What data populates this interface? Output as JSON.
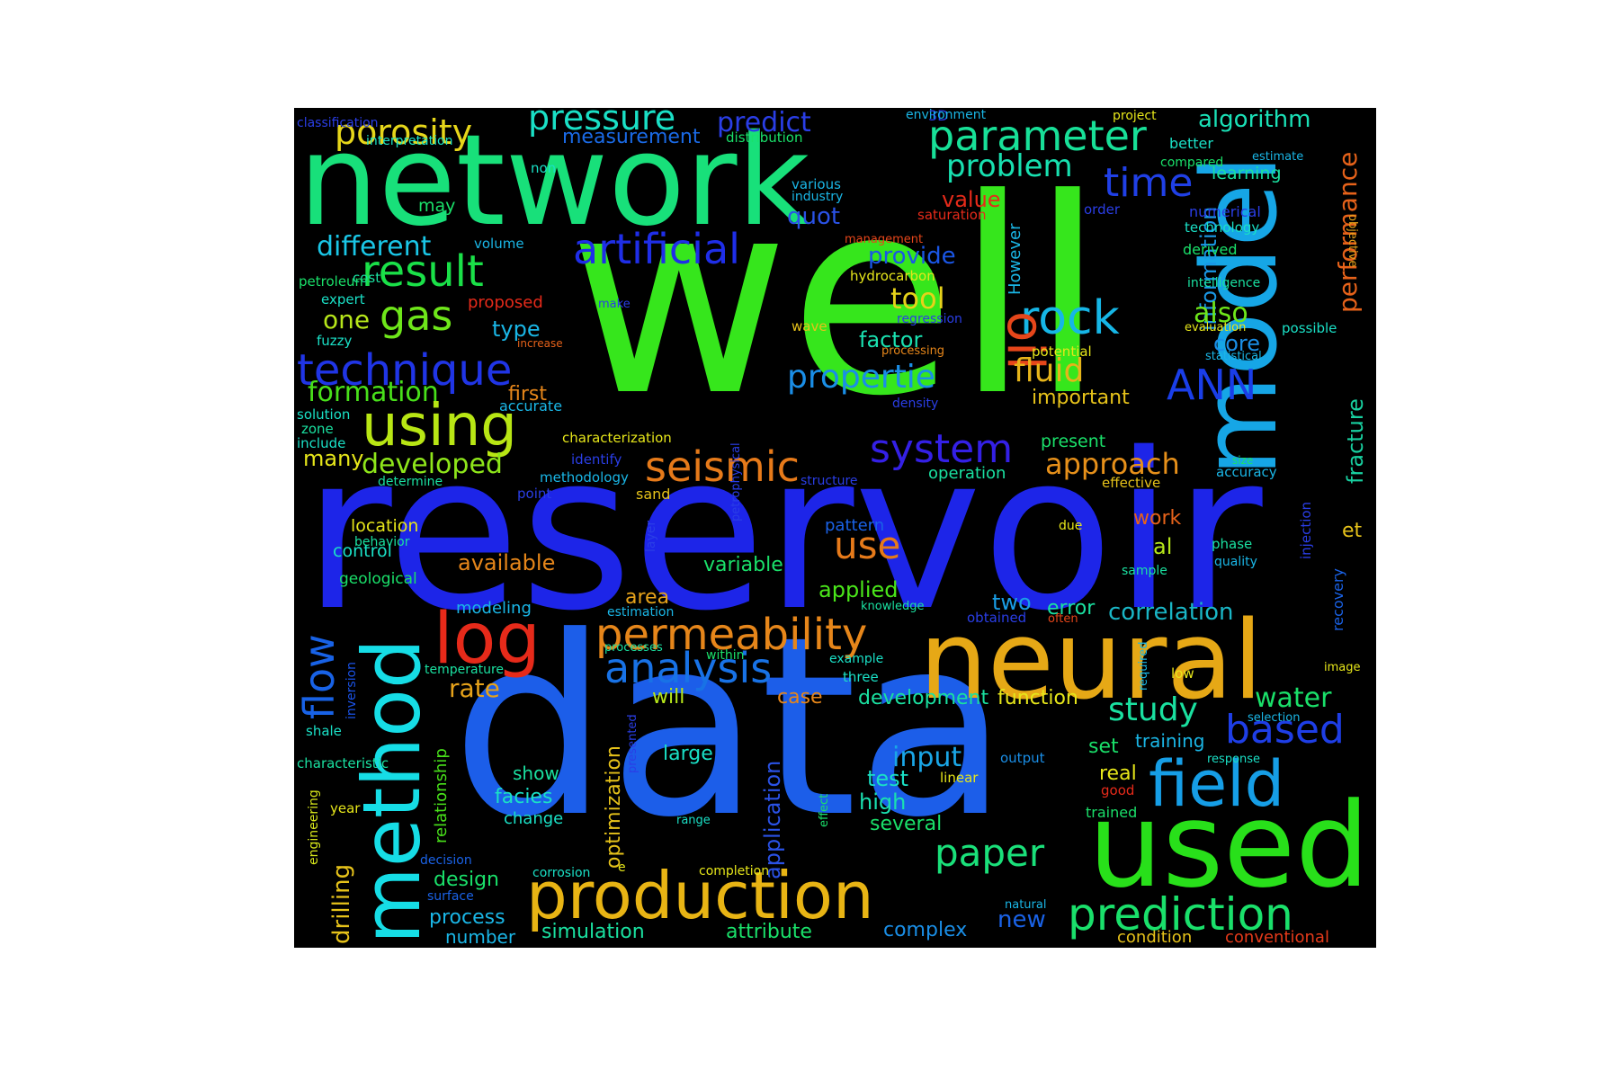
{
  "cloud": {
    "background": "#000000",
    "words": [
      {
        "text": "well",
        "color": "#36e61c"
      },
      {
        "text": "reservoir",
        "color": "#1d25e8"
      },
      {
        "text": "data",
        "color": "#1c5ee9"
      },
      {
        "text": "network",
        "color": "#18e07a"
      },
      {
        "text": "neural",
        "color": "#e6a816"
      },
      {
        "text": "model",
        "color": "#16a6e6"
      },
      {
        "text": "used",
        "color": "#28e01a"
      },
      {
        "text": "method",
        "color": "#16dde6"
      },
      {
        "text": "production",
        "color": "#e8b414"
      },
      {
        "text": "log",
        "color": "#e62a1a"
      },
      {
        "text": "field",
        "color": "#169ee6"
      },
      {
        "text": "prediction",
        "color": "#1ae06b"
      },
      {
        "text": "permeability",
        "color": "#e6861a"
      },
      {
        "text": "artificial",
        "color": "#1f2ee8"
      },
      {
        "text": "parameter",
        "color": "#18e098"
      },
      {
        "text": "technique",
        "color": "#2035e6"
      },
      {
        "text": "using",
        "color": "#b8e614"
      },
      {
        "text": "analysis",
        "color": "#1872e6"
      },
      {
        "text": "seismic",
        "color": "#e67a1a"
      },
      {
        "text": "rock",
        "color": "#16b6e6"
      },
      {
        "text": "result",
        "color": "#1ae048"
      },
      {
        "text": "porosity",
        "color": "#e6d61a"
      },
      {
        "text": "pressure",
        "color": "#1ae0c6"
      },
      {
        "text": "system",
        "color": "#3420e6"
      },
      {
        "text": "oil",
        "color": "#e6461a"
      },
      {
        "text": "flow",
        "color": "#1862e6"
      },
      {
        "text": "time",
        "color": "#2040e6"
      },
      {
        "text": "gas",
        "color": "#6ee61a"
      },
      {
        "text": "ANN",
        "color": "#1a3ee8"
      },
      {
        "text": "based",
        "color": "#1e3ee6"
      },
      {
        "text": "paper",
        "color": "#1ae07a"
      },
      {
        "text": "study",
        "color": "#1ae0a0"
      },
      {
        "text": "use",
        "color": "#e67a1a"
      },
      {
        "text": "problem",
        "color": "#18e0b0"
      },
      {
        "text": "fluid",
        "color": "#e6b41a"
      },
      {
        "text": "propertie",
        "color": "#1a8ee6"
      },
      {
        "text": "approach",
        "color": "#e6901a"
      },
      {
        "text": "performance",
        "color": "#e6621a"
      },
      {
        "text": "fracture",
        "color": "#18d0a0"
      },
      {
        "text": "information",
        "color": "#1a98e6"
      },
      {
        "text": "developed",
        "color": "#8ee61a"
      },
      {
        "text": "formation",
        "color": "#48e01a"
      },
      {
        "text": "drilling",
        "color": "#e6c21a"
      },
      {
        "text": "different",
        "color": "#1ac6e6"
      },
      {
        "text": "input",
        "color": "#1aa6e6"
      },
      {
        "text": "water",
        "color": "#1ae06a"
      },
      {
        "text": "predict",
        "color": "#2a3ee6"
      },
      {
        "text": "tool",
        "color": "#e6d21a"
      },
      {
        "text": "also",
        "color": "#6ee61a"
      },
      {
        "text": "correlation",
        "color": "#1ab6c6"
      },
      {
        "text": "rate",
        "color": "#e6a21a"
      },
      {
        "text": "one",
        "color": "#b6e61a"
      },
      {
        "text": "algorithm",
        "color": "#1ae0b6"
      },
      {
        "text": "measurement",
        "color": "#1a6ae6"
      },
      {
        "text": "quot",
        "color": "#2a52e6"
      },
      {
        "text": "provide",
        "color": "#1a56e6"
      },
      {
        "text": "value",
        "color": "#e62a1a"
      },
      {
        "text": "core",
        "color": "#1a8ee6"
      },
      {
        "text": "factor",
        "color": "#1ae0b0"
      },
      {
        "text": "important",
        "color": "#e6c21a"
      },
      {
        "text": "type",
        "color": "#1ab6e6"
      },
      {
        "text": "first",
        "color": "#e6861a"
      },
      {
        "text": "many",
        "color": "#e6e61a"
      },
      {
        "text": "available",
        "color": "#e6861a"
      },
      {
        "text": "variable",
        "color": "#1ae06a"
      },
      {
        "text": "applied",
        "color": "#4ae61a"
      },
      {
        "text": "area",
        "color": "#e6a21a"
      },
      {
        "text": "two",
        "color": "#1a9ee6"
      },
      {
        "text": "error",
        "color": "#1ae0a0"
      },
      {
        "text": "al",
        "color": "#b6e61a"
      },
      {
        "text": "et",
        "color": "#e6c21a"
      },
      {
        "text": "work",
        "color": "#e6621a"
      },
      {
        "text": "training",
        "color": "#1ab6e6"
      },
      {
        "text": "set",
        "color": "#1ae06a"
      },
      {
        "text": "real",
        "color": "#e6e61a"
      },
      {
        "text": "test",
        "color": "#1ae0c6"
      },
      {
        "text": "high",
        "color": "#1ae0b0"
      },
      {
        "text": "several",
        "color": "#1ae06a"
      },
      {
        "text": "will",
        "color": "#b6e61a"
      },
      {
        "text": "case",
        "color": "#e6861a"
      },
      {
        "text": "development",
        "color": "#1ae0a0"
      },
      {
        "text": "function",
        "color": "#e6e61a"
      },
      {
        "text": "show",
        "color": "#1ae0a0"
      },
      {
        "text": "facies",
        "color": "#1ae0c6"
      },
      {
        "text": "change",
        "color": "#1ae0c6"
      },
      {
        "text": "large",
        "color": "#1ae0c6"
      },
      {
        "text": "optimization",
        "color": "#e6c21a"
      },
      {
        "text": "application",
        "color": "#2a52e6"
      },
      {
        "text": "design",
        "color": "#1ae06a"
      },
      {
        "text": "process",
        "color": "#1ab6e6"
      },
      {
        "text": "number",
        "color": "#1ab6e6"
      },
      {
        "text": "simulation",
        "color": "#1ae0a0"
      },
      {
        "text": "attribute",
        "color": "#1ae06a"
      },
      {
        "text": "complex",
        "color": "#1a8ee6"
      },
      {
        "text": "new",
        "color": "#1a62e6"
      },
      {
        "text": "condition",
        "color": "#e6c21a"
      },
      {
        "text": "conventional",
        "color": "#e63a1a"
      },
      {
        "text": "modeling",
        "color": "#1ab6e6"
      },
      {
        "text": "relationship",
        "color": "#48e01a"
      },
      {
        "text": "characteristic",
        "color": "#1ae0a0"
      },
      {
        "text": "engineering",
        "color": "#d6e61a"
      },
      {
        "text": "year",
        "color": "#e6e61a"
      },
      {
        "text": "shale",
        "color": "#1ae0c6"
      },
      {
        "text": "inversion",
        "color": "#1a52e6"
      },
      {
        "text": "temperature",
        "color": "#1ae0a0"
      },
      {
        "text": "geological",
        "color": "#1ae06a"
      },
      {
        "text": "control",
        "color": "#1ae0c6"
      },
      {
        "text": "location",
        "color": "#e6e61a"
      },
      {
        "text": "behavior",
        "color": "#1ae0a0"
      },
      {
        "text": "determine",
        "color": "#1ae0a0"
      },
      {
        "text": "include",
        "color": "#1ae0c6"
      },
      {
        "text": "zone",
        "color": "#1ae0a0"
      },
      {
        "text": "solution",
        "color": "#1ae0c6"
      },
      {
        "text": "fuzzy",
        "color": "#1ae0c6"
      },
      {
        "text": "expert",
        "color": "#1ae0c6"
      },
      {
        "text": "cost",
        "color": "#1ae0a0"
      },
      {
        "text": "petroleum",
        "color": "#1ae06a"
      },
      {
        "text": "volume",
        "color": "#1ab6e6"
      },
      {
        "text": "may",
        "color": "#1ae06a"
      },
      {
        "text": "non",
        "color": "#1ae0c6"
      },
      {
        "text": "classification",
        "color": "#2a3ee6"
      },
      {
        "text": "interpretation",
        "color": "#1ae0c6"
      },
      {
        "text": "distribution",
        "color": "#1ae06a"
      },
      {
        "text": "3D",
        "color": "#2a3ee6"
      },
      {
        "text": "environment",
        "color": "#1ab6e6"
      },
      {
        "text": "project",
        "color": "#e6e61a"
      },
      {
        "text": "better",
        "color": "#1ae0c6"
      },
      {
        "text": "compared",
        "color": "#1ae06a"
      },
      {
        "text": "estimate",
        "color": "#1ab6e6"
      },
      {
        "text": "learning",
        "color": "#1ae0a0"
      },
      {
        "text": "numerical",
        "color": "#2a3ee6"
      },
      {
        "text": "technology",
        "color": "#1ae0c6"
      },
      {
        "text": "derived",
        "color": "#1ae06a"
      },
      {
        "text": "objective",
        "color": "#e6a21a"
      },
      {
        "text": "intelligence",
        "color": "#1ae0a0"
      },
      {
        "text": "evaluation",
        "color": "#e6e61a"
      },
      {
        "text": "possible",
        "color": "#1ae0c6"
      },
      {
        "text": "statistical",
        "color": "#1ab6e6"
      },
      {
        "text": "potential",
        "color": "#e6e61a"
      },
      {
        "text": "order",
        "color": "#2a3ee6"
      },
      {
        "text": "various",
        "color": "#1ab6e6"
      },
      {
        "text": "industry",
        "color": "#1ab6e6"
      },
      {
        "text": "saturation",
        "color": "#e62a1a"
      },
      {
        "text": "management",
        "color": "#e6461a"
      },
      {
        "text": "However",
        "color": "#1ab6e6"
      },
      {
        "text": "hydrocarbon",
        "color": "#e6e61a"
      },
      {
        "text": "regression",
        "color": "#2a3ee6"
      },
      {
        "text": "processing",
        "color": "#e6861a"
      },
      {
        "text": "density",
        "color": "#2a3ee6"
      },
      {
        "text": "wave",
        "color": "#e6c21a"
      },
      {
        "text": "increase",
        "color": "#e6621a"
      },
      {
        "text": "make",
        "color": "#2a3ee6"
      },
      {
        "text": "proposed",
        "color": "#e62a1a"
      },
      {
        "text": "accurate",
        "color": "#1ab6e6"
      },
      {
        "text": "petrophysical",
        "color": "#2a3ee6"
      },
      {
        "text": "characterization",
        "color": "#e6e61a"
      },
      {
        "text": "identify",
        "color": "#2a3ee6"
      },
      {
        "text": "methodology",
        "color": "#1ab6e6"
      },
      {
        "text": "point",
        "color": "#2a3ee6"
      },
      {
        "text": "sand",
        "color": "#e6c21a"
      },
      {
        "text": "layer",
        "color": "#2a3ee6"
      },
      {
        "text": "structure",
        "color": "#2a3ee6"
      },
      {
        "text": "present",
        "color": "#1ae06a"
      },
      {
        "text": "operation",
        "color": "#1ae0a0"
      },
      {
        "text": "effective",
        "color": "#e6c21a"
      },
      {
        "text": "accuracy",
        "color": "#1ab6e6"
      },
      {
        "text": "size",
        "color": "#1ae06a"
      },
      {
        "text": "injection",
        "color": "#2a3ee6"
      },
      {
        "text": "phase",
        "color": "#1ae0a0"
      },
      {
        "text": "quality",
        "color": "#1ab6e6"
      },
      {
        "text": "recovery",
        "color": "#1a62e6"
      },
      {
        "text": "due",
        "color": "#e6e61a"
      },
      {
        "text": "sample",
        "color": "#1ae0a0"
      },
      {
        "text": "pattern",
        "color": "#1a62e6"
      },
      {
        "text": "knowledge",
        "color": "#1ae0a0"
      },
      {
        "text": "obtained",
        "color": "#2a3ee6"
      },
      {
        "text": "often",
        "color": "#e6461a"
      },
      {
        "text": "example",
        "color": "#1ae0c6"
      },
      {
        "text": "three",
        "color": "#1ae0c6"
      },
      {
        "text": "within",
        "color": "#1ae06a"
      },
      {
        "text": "processes",
        "color": "#1ae0a0"
      },
      {
        "text": "estimation",
        "color": "#1ab6e6"
      },
      {
        "text": "required",
        "color": "#1ab6e6"
      },
      {
        "text": "low",
        "color": "#e6e61a"
      },
      {
        "text": "image",
        "color": "#e6e61a"
      },
      {
        "text": "selection",
        "color": "#1ab6e6"
      },
      {
        "text": "response",
        "color": "#1ae0c6"
      },
      {
        "text": "output",
        "color": "#1a8ee6"
      },
      {
        "text": "linear",
        "color": "#e6e61a"
      },
      {
        "text": "trained",
        "color": "#1ae06a"
      },
      {
        "text": "good",
        "color": "#e62a1a"
      },
      {
        "text": "natural",
        "color": "#1ab6e6"
      },
      {
        "text": "effect",
        "color": "#1ae06a"
      },
      {
        "text": "range",
        "color": "#1ae0c6"
      },
      {
        "text": "presented",
        "color": "#2a3ee6"
      },
      {
        "text": "completion",
        "color": "#e6e61a"
      },
      {
        "text": "corrosion",
        "color": "#1ae0c6"
      },
      {
        "text": "decision",
        "color": "#1a62e6"
      },
      {
        "text": "surface",
        "color": "#1a62e6"
      },
      {
        "text": "e",
        "color": "#e6e61a"
      }
    ]
  }
}
